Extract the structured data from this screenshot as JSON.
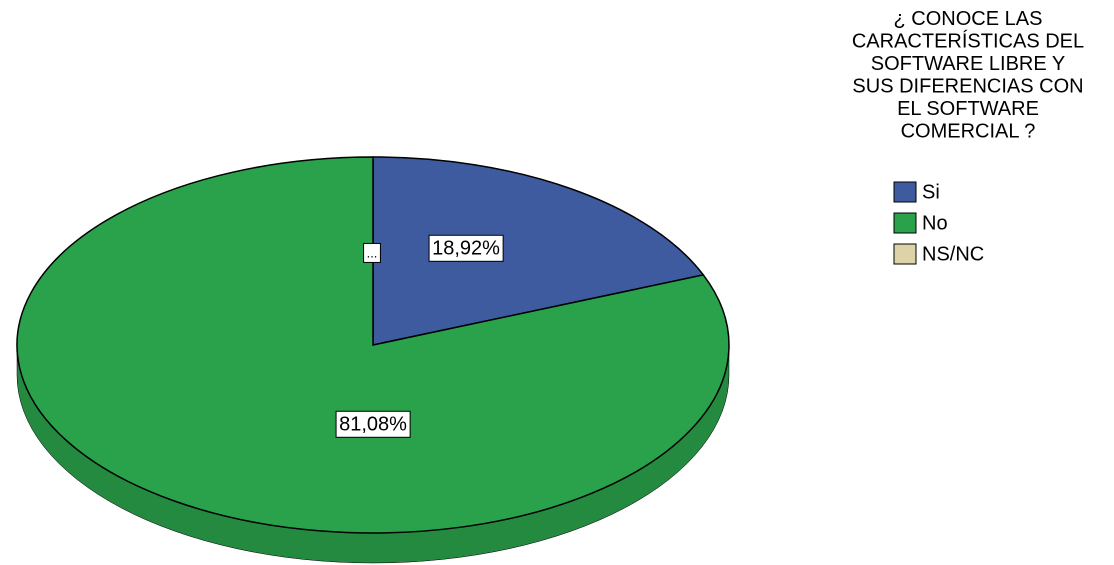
{
  "chart_data": {
    "type": "pie",
    "legend_title": "¿ CONOCE LAS CARACTERÍSTICAS DEL SOFTWARE LIBRE Y SUS DIFERENCIAS CON EL SOFTWARE COMERCIAL ?",
    "categories": [
      "Si",
      "No",
      "NS/NC"
    ],
    "values": [
      18.92,
      81.08,
      0
    ],
    "value_labels": [
      "18,92%",
      "81,08%",
      "..."
    ],
    "colors": [
      "#3f5b9f",
      "#29a24b",
      "#dcd4a8"
    ],
    "legend": "top-right"
  }
}
